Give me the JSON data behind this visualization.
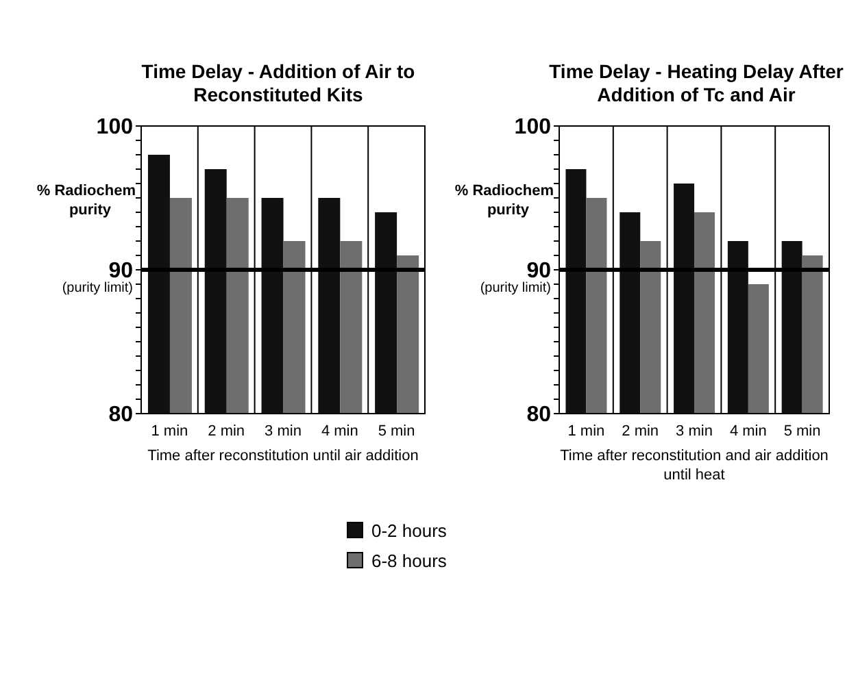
{
  "chart_data": [
    {
      "type": "bar",
      "title": "Time Delay - Addition of Air to Reconstituted Kits",
      "xlabel": "Time after reconstitution until air addition",
      "ylabel": "% Radiochem purity",
      "categories": [
        "1 min",
        "2 min",
        "3 min",
        "4 min",
        "5 min"
      ],
      "series": [
        {
          "name": "0-2 hours",
          "color": "#111111",
          "values": [
            98,
            97,
            95,
            95,
            94
          ]
        },
        {
          "name": "6-8 hours",
          "color": "#6e6e6e",
          "values": [
            95,
            95,
            92,
            92,
            91
          ]
        }
      ],
      "ylim": [
        80,
        100
      ],
      "yticks": [
        80,
        {
          "value": 81,
          "label": null
        },
        {
          "value": 82,
          "label": null
        },
        {
          "value": 83,
          "label": null
        },
        {
          "value": 84,
          "label": null
        },
        {
          "value": 85,
          "label": null
        },
        {
          "value": 86,
          "label": null
        },
        {
          "value": 87,
          "label": null
        },
        {
          "value": 88,
          "label": null
        },
        {
          "value": 89,
          "label": null
        },
        90,
        {
          "value": 91,
          "label": null
        },
        {
          "value": 92,
          "label": null
        },
        {
          "value": 93,
          "label": null
        },
        {
          "value": 94,
          "label": null
        },
        {
          "value": 95,
          "label": null
        },
        {
          "value": 96,
          "label": null
        },
        {
          "value": 97,
          "label": null
        },
        {
          "value": 98,
          "label": null
        },
        {
          "value": 99,
          "label": null
        },
        100
      ],
      "ref_lines": [
        {
          "axis": "y",
          "value": 90,
          "label": "(purity limit)",
          "color": "#000000"
        }
      ],
      "grid": "x",
      "legend": "bottom"
    },
    {
      "type": "bar",
      "title": "Time Delay - Heating Delay After Addition of Tc and Air",
      "xlabel": "Time after reconstitution and air addition until heat",
      "ylabel": "% Radiochem purity",
      "categories": [
        "1 min",
        "2 min",
        "3 min",
        "4 min",
        "5 min"
      ],
      "series": [
        {
          "color": "#111111",
          "values": [
            97,
            94,
            96,
            92,
            92
          ]
        },
        {
          "color": "#6e6e6e",
          "values": [
            95,
            92,
            94,
            89,
            91
          ]
        }
      ],
      "ylim": [
        80,
        100
      ],
      "yticks": [
        80,
        {
          "value": 81,
          "label": null
        },
        {
          "value": 82,
          "label": null
        },
        {
          "value": 83,
          "label": null
        },
        {
          "value": 84,
          "label": null
        },
        {
          "value": 85,
          "label": null
        },
        {
          "value": 86,
          "label": null
        },
        {
          "value": 87,
          "label": null
        },
        {
          "value": 88,
          "label": null
        },
        {
          "value": 89,
          "label": null
        },
        90,
        {
          "value": 91,
          "label": null
        },
        {
          "value": 92,
          "label": null
        },
        {
          "value": 93,
          "label": null
        },
        {
          "value": 94,
          "label": null
        },
        {
          "value": 95,
          "label": null
        },
        {
          "value": 96,
          "label": null
        },
        {
          "value": 97,
          "label": null
        },
        {
          "value": 98,
          "label": null
        },
        {
          "value": 99,
          "label": null
        },
        100
      ],
      "ref_lines": [
        {
          "axis": "y",
          "value": 90,
          "label": "(purity limit)",
          "color": "#000000"
        }
      ],
      "grid": "x"
    }
  ]
}
